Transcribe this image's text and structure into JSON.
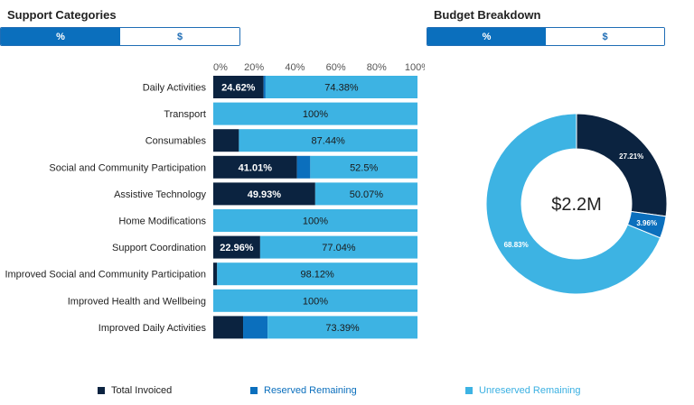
{
  "left_panel": {
    "title": "Support Categories",
    "toggle": [
      "%",
      "$"
    ],
    "active_toggle": "%"
  },
  "right_panel": {
    "title": "Budget Breakdown",
    "toggle": [
      "%",
      "$"
    ],
    "active_toggle": "%"
  },
  "colors": {
    "invoiced": "#0b2340",
    "reserved": "#0b6fbd",
    "unreserved": "#3db3e3",
    "accent": "#0b6fbd"
  },
  "legend": [
    {
      "key": "invoiced",
      "label": "Total Invoiced"
    },
    {
      "key": "reserved",
      "label": "Reserved Remaining"
    },
    {
      "key": "unreserved",
      "label": "Unreserved Remaining"
    }
  ],
  "chart_data": [
    {
      "type": "bar",
      "orientation": "horizontal",
      "stacked": true,
      "xlim": [
        0,
        100
      ],
      "x_ticks": [
        "0%",
        "20%",
        "40%",
        "60%",
        "80%",
        "100%"
      ],
      "categories": [
        "Daily Activities",
        "Transport",
        "Consumables",
        "Social and Community Participation",
        "Assistive Technology",
        "Home Modifications",
        "Support Coordination",
        "Improved Social and Community Participation",
        "Improved Health and Wellbeing",
        "Improved Daily Activities"
      ],
      "series": [
        {
          "name": "Total Invoiced",
          "values": [
            24.62,
            0,
            12.56,
            41.01,
            49.93,
            0,
            22.96,
            1.88,
            0,
            14.61
          ],
          "labels": [
            "24.62%",
            "",
            "",
            "41.01%",
            "49.93%",
            "",
            "22.96%",
            "",
            "",
            ""
          ]
        },
        {
          "name": "Reserved Remaining",
          "values": [
            1.0,
            0,
            0,
            6.49,
            0,
            0,
            0,
            0,
            0,
            12.0
          ],
          "labels": [
            "",
            "",
            "",
            "",
            "",
            "",
            "",
            "",
            "",
            ""
          ]
        },
        {
          "name": "Unreserved Remaining",
          "values": [
            74.38,
            100,
            87.44,
            52.5,
            50.07,
            100,
            77.04,
            98.12,
            100,
            73.39
          ],
          "labels": [
            "74.38%",
            "100%",
            "87.44%",
            "52.5%",
            "50.07%",
            "100%",
            "77.04%",
            "98.12%",
            "100%",
            "73.39%"
          ]
        }
      ]
    },
    {
      "type": "pie",
      "donut": true,
      "center_label": "$2.2M",
      "slices": [
        {
          "name": "Total Invoiced",
          "value": 27.21,
          "label": "27.21%"
        },
        {
          "name": "Reserved Remaining",
          "value": 3.96,
          "label": "3.96%"
        },
        {
          "name": "Unreserved Remaining",
          "value": 68.83,
          "label": "68.83%"
        }
      ]
    }
  ]
}
